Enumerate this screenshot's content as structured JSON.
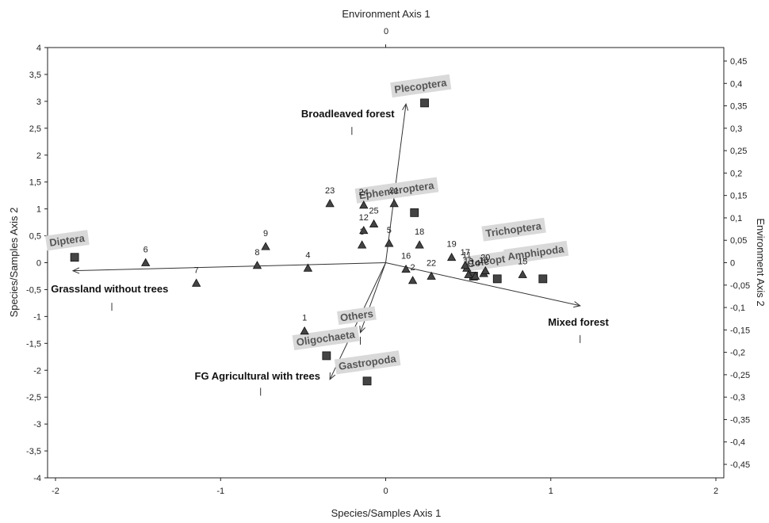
{
  "chart_data": {
    "type": "scatter",
    "title": "",
    "xlabel": "Species/Samples Axis 1",
    "ylabel": "Species/Samples Axis 2",
    "top_label": "Environment Axis 1",
    "top_tick": "0",
    "right_label": "Environment Axis 2",
    "xlim": [
      -2,
      2
    ],
    "ylim": [
      -4,
      4
    ],
    "x_ticks": [
      "-2",
      "-1",
      "0",
      "1",
      "2"
    ],
    "y_ticks": [
      "4",
      "3,5",
      "3",
      "2,5",
      "2",
      "1,5",
      "1",
      "0,5",
      "0",
      "-0,5",
      "-1",
      "-1,5",
      "-2",
      "-2,5",
      "-3",
      "-3,5",
      "-4"
    ],
    "y2_ticks": [
      "0,45",
      "0,4",
      "0,35",
      "0,3",
      "0,25",
      "0,2",
      "0,15",
      "0,1",
      "0,05",
      "0",
      "-0,05",
      "-0,1",
      "-0,15",
      "-0,2",
      "-0,25",
      "-0,3",
      "-0,35",
      "-0,4",
      "-0,45"
    ],
    "environment_vectors": [
      {
        "name": "Broadleaved forest",
        "x": 0.12,
        "y": 2.95,
        "label_x": -0.5,
        "label_y": 2.7,
        "tick_x": -0.2,
        "tick_y": 2.45
      },
      {
        "name": "Grassland without trees",
        "x": -1.85,
        "y": -0.15,
        "label_x": -1.98,
        "label_y": -0.55,
        "tick_x": -1.62,
        "tick_y": -0.82
      },
      {
        "name": "Mixed forest",
        "x": 1.15,
        "y": -0.8,
        "label_x": 0.96,
        "label_y": -1.17,
        "tick_x": 1.15,
        "tick_y": -1.42
      },
      {
        "name": "FG Agricultural with trees",
        "x": -0.33,
        "y": -2.17,
        "label_x": -1.13,
        "label_y": -2.17,
        "tick_x": -0.74,
        "tick_y": -2.4
      },
      {
        "name": "Others",
        "x": -0.15,
        "y": -1.3,
        "label_x": -0.27,
        "label_y": -1.05,
        "tick_x": -0.15,
        "tick_y": -1.45
      }
    ],
    "species": [
      {
        "name": "Plecoptera",
        "x": 0.23,
        "y": 2.97,
        "label_x": 0.05,
        "label_y": 3.22
      },
      {
        "name": "Ephemeroptera",
        "x": 0.17,
        "y": 0.93,
        "label_x": -0.16,
        "label_y": 1.28
      },
      {
        "name": "Diptera",
        "x": -1.84,
        "y": 0.1,
        "label_x": -1.99,
        "label_y": 0.35
      },
      {
        "name": "Trichoptera",
        "x": 0.66,
        "y": -0.3,
        "label_x": 0.59,
        "label_y": 0.55
      },
      {
        "name": "Coleoptera",
        "x": 0.52,
        "y": -0.25,
        "label_x": 0.48,
        "label_y": -0.02
      },
      {
        "name": "Amphipoda",
        "x": 0.93,
        "y": -0.3,
        "label_x": 0.72,
        "label_y": 0.12
      },
      {
        "name": "Oligochaeta",
        "x": -0.35,
        "y": -1.73,
        "label_x": -0.53,
        "label_y": -1.47
      },
      {
        "name": "Gastropoda",
        "x": -0.11,
        "y": -2.2,
        "label_x": -0.28,
        "label_y": -1.92
      }
    ],
    "samples": [
      {
        "label": "1",
        "x": -0.48,
        "y": -1.27
      },
      {
        "label": "2",
        "x": 0.16,
        "y": -0.33
      },
      {
        "label": "3",
        "x": -0.14,
        "y": 0.33
      },
      {
        "label": "4",
        "x": -0.46,
        "y": -0.1
      },
      {
        "label": "5",
        "x": 0.02,
        "y": 0.36
      },
      {
        "label": "6",
        "x": -1.42,
        "y": 0.0
      },
      {
        "label": "7",
        "x": -1.12,
        "y": -0.38
      },
      {
        "label": "8",
        "x": -0.76,
        "y": -0.05
      },
      {
        "label": "9",
        "x": -0.71,
        "y": 0.3
      },
      {
        "label": "10",
        "x": 0.58,
        "y": -0.2
      },
      {
        "label": "11",
        "x": 0.48,
        "y": -0.1
      },
      {
        "label": "12",
        "x": -0.13,
        "y": 0.6
      },
      {
        "label": "13",
        "x": 0.49,
        "y": -0.22
      },
      {
        "label": "14",
        "x": 0.53,
        "y": -0.25
      },
      {
        "label": "15",
        "x": 0.81,
        "y": -0.22
      },
      {
        "label": "16",
        "x": 0.12,
        "y": -0.12
      },
      {
        "label": "17",
        "x": 0.47,
        "y": -0.05
      },
      {
        "label": "18",
        "x": 0.2,
        "y": 0.33
      },
      {
        "label": "19",
        "x": 0.39,
        "y": 0.1
      },
      {
        "label": "20",
        "x": 0.59,
        "y": -0.15
      },
      {
        "label": "21",
        "x": 0.05,
        "y": 1.1
      },
      {
        "label": "22",
        "x": 0.27,
        "y": -0.25
      },
      {
        "label": "23",
        "x": -0.33,
        "y": 1.1
      },
      {
        "label": "24",
        "x": -0.13,
        "y": 1.07
      },
      {
        "label": "25",
        "x": -0.07,
        "y": 0.72
      }
    ],
    "colors": {
      "marker": "#444444",
      "label_box": "#d9d9d9",
      "axis": "#222222",
      "vector": "#333333"
    }
  }
}
